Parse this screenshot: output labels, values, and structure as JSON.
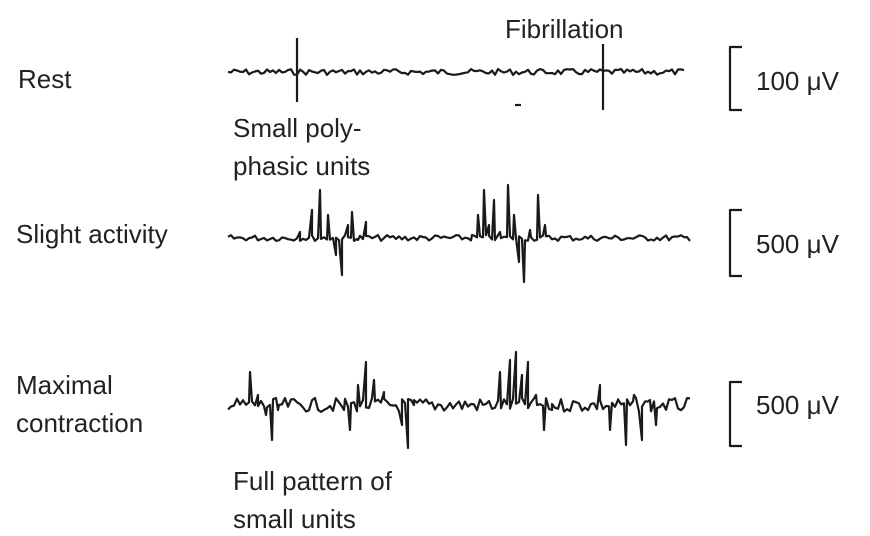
{
  "rows": [
    {
      "label": [
        "Rest"
      ],
      "scale": "100 μV"
    },
    {
      "label": [
        "Slight activity"
      ],
      "scale": "500 μV"
    },
    {
      "label": [
        "Maximal",
        "contraction"
      ],
      "scale": "500 μV"
    }
  ],
  "annotations": {
    "fibrillation": "Fibrillation",
    "polyphasic": [
      "Small poly-",
      "phasic units"
    ],
    "full_pattern": [
      "Full pattern of",
      "small units"
    ]
  }
}
